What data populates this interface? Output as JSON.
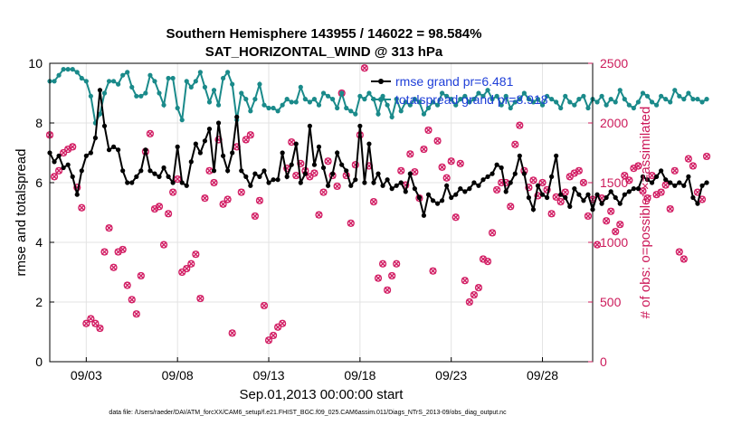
{
  "chart_data": {
    "type": "line",
    "title": "Southern Hemisphere 143955 / 146022 = 98.584%",
    "subtitle": "SAT_HORIZONTAL_WIND @ 313 hPa",
    "xlabel": "Sep.01,2013 00:00:00 start",
    "ylabel_left": "rmse and totalspread",
    "ylabel_right": "# of obs: o=possible; ×=assimilated",
    "footnote": "data file: /Users/raeder/DAI/ATM_forcXX/CAM6_setup/f.e21.FHIST_BGC.f09_025.CAM6assim.011/Diags_NTrS_2013-09/obs_diag_output.nc",
    "x_ticks": [
      "09/03",
      "09/08",
      "09/13",
      "09/18",
      "09/23",
      "09/28"
    ],
    "x_tick_days": [
      3,
      8,
      13,
      18,
      23,
      28
    ],
    "xlim_days": [
      1.0,
      30.75
    ],
    "ylim_left": [
      0,
      10
    ],
    "ylim_right": [
      0,
      2500
    ],
    "y_ticks_left": [
      "0",
      "2",
      "4",
      "6",
      "8",
      "10"
    ],
    "y_ticks_right": [
      "0",
      "500",
      "1000",
      "1500",
      "2000",
      "2500"
    ],
    "grid": true,
    "legend_position": "top-right",
    "colors": {
      "rmse": "#000000",
      "spread": "#1a8a8a",
      "obs": "#d21e64",
      "right_axis": "#cc1a5a"
    },
    "series": [
      {
        "name": "rmse grand pr=6.481",
        "x_start_day": 1.0,
        "x_step_days": 0.25,
        "values": [
          7.0,
          6.7,
          6.9,
          6.5,
          6.6,
          6.2,
          5.6,
          6.4,
          6.9,
          7.0,
          7.5,
          9.1,
          7.9,
          7.1,
          7.2,
          7.1,
          6.4,
          6.0,
          6.0,
          6.2,
          6.4,
          7.1,
          6.4,
          6.3,
          6.2,
          6.5,
          6.2,
          6.0,
          7.2,
          6.0,
          5.9,
          6.7,
          7.3,
          7.0,
          7.4,
          7.8,
          6.4,
          8.0,
          6.9,
          6.4,
          7.0,
          8.2,
          6.4,
          6.2,
          5.9,
          6.3,
          6.2,
          6.4,
          6.0,
          6.1,
          6.1,
          7.0,
          6.2,
          6.6,
          7.3,
          6.0,
          6.3,
          7.9,
          6.6,
          7.2,
          6.5,
          5.9,
          6.3,
          7.0,
          6.6,
          6.4,
          5.9,
          6.1,
          7.9,
          6.0,
          7.3,
          6.0,
          6.3,
          5.9,
          6.1,
          5.8,
          5.9,
          6.0,
          5.7,
          6.3,
          5.8,
          5.5,
          4.9,
          5.6,
          5.4,
          5.3,
          5.4,
          5.9,
          5.5,
          5.6,
          5.8,
          5.7,
          5.8,
          6.0,
          5.9,
          6.1,
          6.2,
          6.3,
          6.6,
          6.5,
          5.7,
          6.0,
          6.3,
          6.9,
          6.3,
          5.5,
          5.1,
          5.9,
          5.6,
          5.5,
          6.2,
          6.9,
          5.6,
          5.5,
          5.2,
          5.8,
          5.6,
          5.4,
          5.6,
          5.1,
          5.6,
          5.3,
          5.5,
          5.7,
          5.5,
          5.3,
          5.6,
          5.7,
          5.8,
          5.8,
          6.2,
          6.1,
          6.0,
          6.2,
          6.4,
          6.1,
          6.0,
          5.9,
          6.0,
          5.9,
          6.2,
          5.5,
          5.3,
          5.9,
          6.0
        ]
      },
      {
        "name": "totalspread grand pr=8.918",
        "x_start_day": 1.0,
        "x_step_days": 0.25,
        "values": [
          9.4,
          9.4,
          9.6,
          9.8,
          9.8,
          9.8,
          9.7,
          9.5,
          9.4,
          8.9,
          8.0,
          8.3,
          9.0,
          9.4,
          9.4,
          9.3,
          9.6,
          9.7,
          9.2,
          8.9,
          8.9,
          9.0,
          9.6,
          9.4,
          9.0,
          8.6,
          9.5,
          9.5,
          8.5,
          8.1,
          9.4,
          9.2,
          9.4,
          9.7,
          9.2,
          8.7,
          9.1,
          8.6,
          9.5,
          9.7,
          9.3,
          8.1,
          9.0,
          8.8,
          8.4,
          8.8,
          9.3,
          8.6,
          8.5,
          8.5,
          8.4,
          8.6,
          8.8,
          8.7,
          8.7,
          9.2,
          8.8,
          8.7,
          8.8,
          8.6,
          9.0,
          8.9,
          8.8,
          8.5,
          9.0,
          8.5,
          8.4,
          8.3,
          8.9,
          8.8,
          9.0,
          8.8,
          8.3,
          8.9,
          8.6,
          8.2,
          8.8,
          8.4,
          8.7,
          8.6,
          8.8,
          8.7,
          8.3,
          8.5,
          8.7,
          8.6,
          9.0,
          8.9,
          8.8,
          8.6,
          8.8,
          8.9,
          8.7,
          8.8,
          9.0,
          8.9,
          9.1,
          8.8,
          8.9,
          8.6,
          8.9,
          8.5,
          8.7,
          8.8,
          9.0,
          8.8,
          8.7,
          8.8,
          8.6,
          8.9,
          8.8,
          8.7,
          8.5,
          8.9,
          8.7,
          8.6,
          8.8,
          8.9,
          8.5,
          8.8,
          8.7,
          8.9,
          8.6,
          8.8,
          8.7,
          9.1,
          8.8,
          8.6,
          8.5,
          8.7,
          9.0,
          8.9,
          8.7,
          8.6,
          8.9,
          8.8,
          8.7,
          9.1,
          8.9,
          8.8,
          9.0,
          8.8,
          8.8,
          8.7,
          8.8
        ]
      },
      {
        "name": "obs possible / assimilated",
        "x_start_day": 1.0,
        "x_step_days": 0.25,
        "values": [
          1900,
          1550,
          1600,
          1750,
          1780,
          1800,
          1460,
          1290,
          320,
          360,
          320,
          280,
          920,
          1120,
          790,
          920,
          940,
          640,
          520,
          400,
          720,
          1760,
          1910,
          1280,
          1300,
          980,
          1240,
          1420,
          1530,
          750,
          780,
          820,
          900,
          530,
          1370,
          1600,
          1500,
          1860,
          1320,
          1360,
          240,
          1800,
          1420,
          1860,
          1900,
          1220,
          1350,
          470,
          180,
          220,
          290,
          320,
          1620,
          1840,
          1560,
          1660,
          1600,
          1550,
          1580,
          1230,
          1420,
          1680,
          1560,
          1470,
          2250,
          1560,
          1160,
          1650,
          1900,
          2460,
          1640,
          1340,
          700,
          820,
          600,
          720,
          820,
          1600,
          1480,
          1740,
          1590,
          1370,
          1780,
          1940,
          760,
          1850,
          1630,
          1540,
          1680,
          1210,
          1660,
          680,
          500,
          560,
          620,
          860,
          840,
          1080,
          1440,
          1500,
          1500,
          1300,
          1820,
          1980,
          1600,
          1460,
          1520,
          1390,
          1500,
          1440,
          1240,
          1380,
          1340,
          1420,
          1550,
          1580,
          1600,
          1500,
          1220,
          1360,
          980,
          1370,
          1180,
          1260,
          1090,
          1150,
          1560,
          1520,
          1620,
          1640,
          1430,
          1370,
          1560,
          1400,
          1420,
          1480,
          1280,
          1600,
          920,
          860,
          1700,
          1640,
          1420,
          1360,
          1720
        ]
      }
    ]
  }
}
